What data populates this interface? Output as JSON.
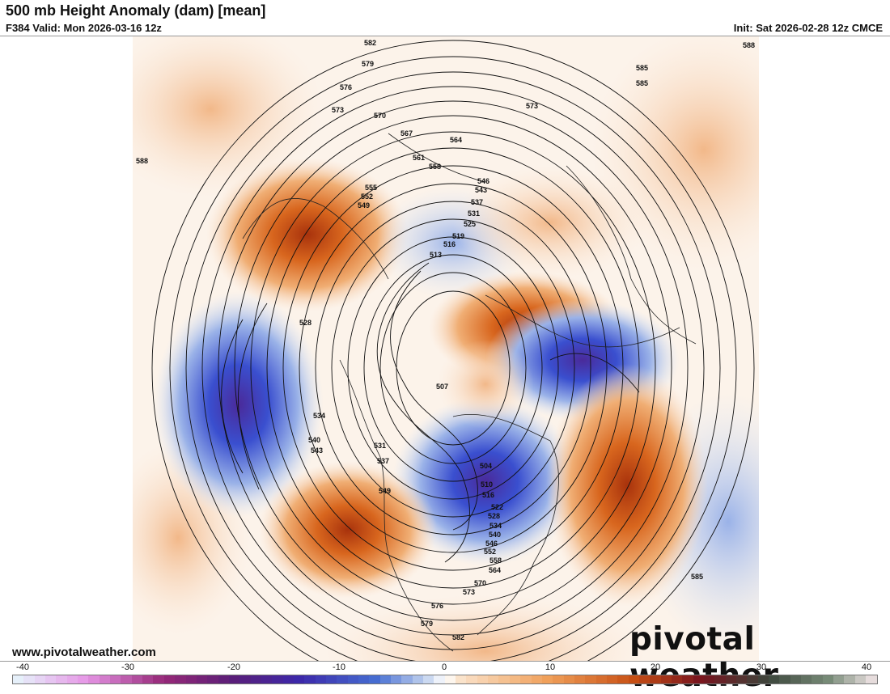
{
  "header": {
    "title": "500 mb Height Anomaly (dam) [mean]",
    "valid": "F384 Valid: Mon 2026-03-16 12z",
    "init": "Init: Sat 2026-02-28 12z CMCE"
  },
  "footer": {
    "website": "www.pivotalweather.com",
    "brand": "pivotal weather"
  },
  "colorbar": {
    "tick_labels": [
      "-40",
      "-30",
      "-20",
      "-10",
      "0",
      "10",
      "20",
      "30",
      "40"
    ],
    "min": -40,
    "max": 40,
    "colors": {
      "neg_strong": "#4a2a9a",
      "neg_mid": "#3a4fcf",
      "neg_light": "#c9d7f0",
      "pos_light": "#f7d9bf",
      "pos_mid": "#e07a2a",
      "pos_strong": "#a8320c"
    }
  },
  "contour_labels": [
    "582",
    "579",
    "576",
    "573",
    "570",
    "567",
    "564",
    "561",
    "558",
    "555",
    "552",
    "549",
    "546",
    "543",
    "537",
    "531",
    "525",
    "519",
    "516",
    "513",
    "588",
    "528",
    "534",
    "540",
    "543",
    "507",
    "504",
    "510",
    "516",
    "522",
    "528",
    "534",
    "540",
    "546",
    "552",
    "558",
    "564",
    "570",
    "573",
    "576",
    "579",
    "582",
    "531",
    "537",
    "549",
    "585",
    "588",
    "585",
    "573",
    "585"
  ]
}
